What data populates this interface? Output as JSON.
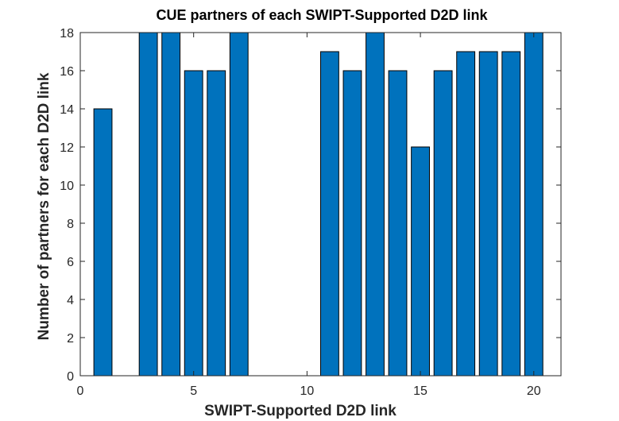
{
  "chart_data": {
    "type": "bar",
    "title": "CUE partners of each SWIPT-Supported D2D link",
    "xlabel": "SWIPT-Supported D2D link",
    "ylabel": "Number of partners for each D2D link",
    "x": [
      1,
      2,
      3,
      4,
      5,
      6,
      7,
      8,
      9,
      10,
      11,
      12,
      13,
      14,
      15,
      16,
      17,
      18,
      19,
      20
    ],
    "values": [
      14,
      0,
      18,
      18,
      16,
      16,
      18,
      0,
      0,
      0,
      17,
      16,
      18,
      16,
      12,
      16,
      17,
      17,
      17,
      18
    ],
    "xlim": [
      0,
      21.2
    ],
    "ylim": [
      0,
      18
    ],
    "xticks": [
      0,
      5,
      10,
      15,
      20
    ],
    "yticks": [
      0,
      2,
      4,
      6,
      8,
      10,
      12,
      14,
      16,
      18
    ],
    "bar_color": "#0072BD",
    "grid": false,
    "legend": "none"
  }
}
